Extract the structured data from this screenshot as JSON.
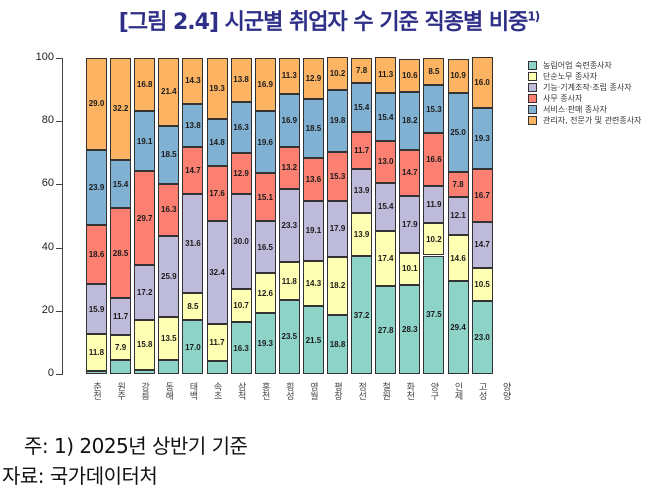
{
  "title": "[그림 2.4] 시군별 취업자 수 기준 직종별 비중",
  "title_sup": "1)",
  "note": "주: 1) 2025년 상반기 기준",
  "source": "자료: 국가데이터처",
  "colors": {
    "agri": "#8dd3c7",
    "simple": "#ffffb3",
    "craft": "#bebada",
    "clerical": "#fb8072",
    "service": "#80b1d3",
    "manager": "#fdb462"
  },
  "legend": [
    {
      "key": "agri",
      "label": "농림어업 숙련종사자"
    },
    {
      "key": "simple",
      "label": "단순노무 종사자"
    },
    {
      "key": "craft",
      "label": "기능·기계조작·조립 종사자"
    },
    {
      "key": "clerical",
      "label": "사무 종사자"
    },
    {
      "key": "service",
      "label": "서비스·판매 종사자"
    },
    {
      "key": "manager",
      "label": "관리자, 전문가 및 관련종사자"
    }
  ],
  "chart_data": {
    "type": "bar",
    "stacked": true,
    "title": "[그림 2.4] 시군별 취업자 수 기준 직종별 비중1)",
    "xlabel": "",
    "ylabel": "",
    "ylim": [
      0,
      100
    ],
    "yticks": [
      0,
      20,
      40,
      60,
      80,
      100
    ],
    "legend_position": "right",
    "categories": [
      "춘천",
      "원주",
      "강릉",
      "동해",
      "태백",
      "속초",
      "삼척",
      "홍천",
      "횡성",
      "영월",
      "평창",
      "정선",
      "철원",
      "화천",
      "양구",
      "인제",
      "고성",
      "양양"
    ],
    "series": [
      {
        "name": "농림어업 숙련종사자",
        "key": "agri",
        "values": [
          0.8,
          4.3,
          1.4,
          4.4,
          17.0,
          4.2,
          16.3,
          19.3,
          23.5,
          21.5,
          18.8,
          37.2,
          27.8,
          28.3,
          37.5,
          29.4,
          23.0,
          0
        ],
        "labels": [
          "",
          "",
          "",
          "",
          17.0,
          "",
          16.3,
          19.3,
          23.5,
          21.5,
          18.8,
          37.2,
          27.8,
          28.3,
          37.5,
          29.4,
          23.0,
          ""
        ]
      },
      {
        "name": "단순노무 종사자",
        "key": "simple",
        "values": [
          11.8,
          7.9,
          15.8,
          13.5,
          8.5,
          11.7,
          10.7,
          12.6,
          11.8,
          14.3,
          18.2,
          13.9,
          17.4,
          10.1,
          10.2,
          14.6,
          10.5,
          0
        ]
      },
      {
        "name": "기능·기계조작·조립 종사자",
        "key": "craft",
        "values": [
          15.9,
          11.7,
          17.2,
          25.9,
          31.6,
          32.4,
          30.0,
          16.5,
          23.3,
          19.1,
          17.9,
          13.9,
          15.4,
          17.9,
          11.9,
          12.1,
          14.7,
          0
        ]
      },
      {
        "name": "사무 종사자",
        "key": "clerical",
        "values": [
          18.6,
          28.5,
          29.7,
          16.3,
          14.7,
          17.6,
          12.9,
          15.1,
          13.2,
          13.6,
          15.3,
          11.7,
          13.0,
          14.7,
          16.6,
          7.8,
          16.7,
          0
        ]
      },
      {
        "name": "서비스·판매 종사자",
        "key": "service",
        "values": [
          23.9,
          15.4,
          19.1,
          18.5,
          13.8,
          14.8,
          16.3,
          19.6,
          16.9,
          18.5,
          19.8,
          15.4,
          15.4,
          18.2,
          15.3,
          25.0,
          19.3,
          0
        ]
      },
      {
        "name": "관리자, 전문가 및 관련종사자",
        "key": "manager",
        "values": [
          29.0,
          32.2,
          16.8,
          21.4,
          14.3,
          19.3,
          13.8,
          16.9,
          11.3,
          12.9,
          10.2,
          7.8,
          11.3,
          10.6,
          8.5,
          10.9,
          16.0,
          0
        ]
      }
    ],
    "note": "bars shown: 17 labeled columns (the chart displays 17 visible bars from 춘천 to 고성 in data order)"
  }
}
